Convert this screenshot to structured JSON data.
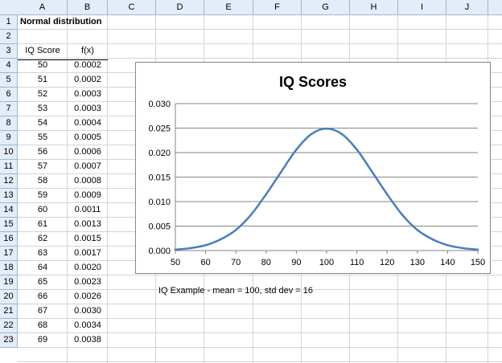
{
  "spreadsheet": {
    "column_headers": [
      "A",
      "B",
      "C",
      "D",
      "E",
      "F",
      "G",
      "H",
      "I",
      "J"
    ],
    "title": "Normal distribution",
    "headers": {
      "col_a": "IQ Score",
      "col_b": "f(x)"
    },
    "rows": [
      {
        "row": "4",
        "score": "50",
        "fx": "0.0002"
      },
      {
        "row": "5",
        "score": "51",
        "fx": "0.0002"
      },
      {
        "row": "6",
        "score": "52",
        "fx": "0.0003"
      },
      {
        "row": "7",
        "score": "53",
        "fx": "0.0003"
      },
      {
        "row": "8",
        "score": "54",
        "fx": "0.0004"
      },
      {
        "row": "9",
        "score": "55",
        "fx": "0.0005"
      },
      {
        "row": "10",
        "score": "56",
        "fx": "0.0006"
      },
      {
        "row": "11",
        "score": "57",
        "fx": "0.0007"
      },
      {
        "row": "12",
        "score": "58",
        "fx": "0.0008"
      },
      {
        "row": "13",
        "score": "59",
        "fx": "0.0009"
      },
      {
        "row": "14",
        "score": "60",
        "fx": "0.0011"
      },
      {
        "row": "15",
        "score": "61",
        "fx": "0.0013"
      },
      {
        "row": "16",
        "score": "62",
        "fx": "0.0015"
      },
      {
        "row": "17",
        "score": "63",
        "fx": "0.0017"
      },
      {
        "row": "18",
        "score": "64",
        "fx": "0.0020"
      },
      {
        "row": "19",
        "score": "65",
        "fx": "0.0023"
      },
      {
        "row": "20",
        "score": "66",
        "fx": "0.0026"
      },
      {
        "row": "21",
        "score": "67",
        "fx": "0.0030"
      },
      {
        "row": "22",
        "score": "68",
        "fx": "0.0034"
      },
      {
        "row": "23",
        "score": "69",
        "fx": "0.0038"
      }
    ],
    "row_numbers": [
      "1",
      "2",
      "3"
    ],
    "note": "IQ Example - mean = 100, std dev = 16"
  },
  "chart_data": {
    "type": "line",
    "title": "IQ Scores",
    "xlabel": "",
    "ylabel": "",
    "x_ticks": [
      "50",
      "60",
      "70",
      "80",
      "90",
      "100",
      "110",
      "120",
      "130",
      "140",
      "150"
    ],
    "y_ticks": [
      "0.000",
      "0.005",
      "0.010",
      "0.015",
      "0.020",
      "0.025",
      "0.030"
    ],
    "xlim": [
      50,
      150
    ],
    "ylim": [
      0,
      0.03
    ],
    "grid": "horizontal",
    "series": [
      {
        "color": "#4a7ebb",
        "x": [
          50,
          55,
          60,
          65,
          70,
          75,
          80,
          85,
          90,
          95,
          100,
          105,
          110,
          115,
          120,
          125,
          130,
          135,
          140,
          145,
          150
        ],
        "y": [
          0.0002,
          0.0005,
          0.0011,
          0.0023,
          0.0042,
          0.0073,
          0.0115,
          0.0161,
          0.0206,
          0.0238,
          0.0249,
          0.0238,
          0.0206,
          0.0161,
          0.0115,
          0.0073,
          0.0042,
          0.0023,
          0.0011,
          0.0005,
          0.0002
        ]
      }
    ]
  }
}
